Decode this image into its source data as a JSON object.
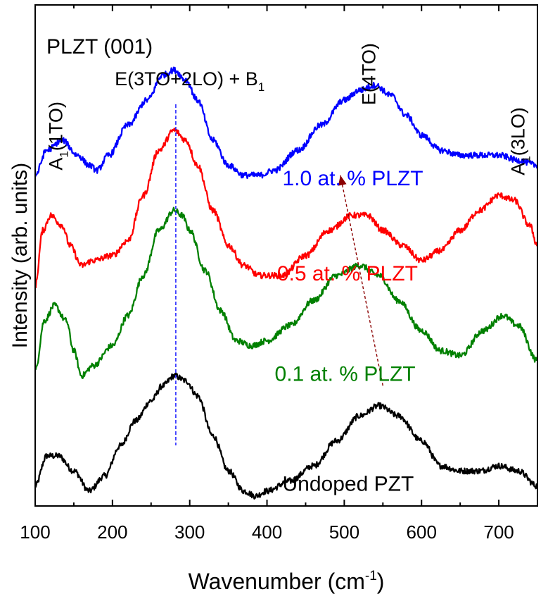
{
  "chart_data": {
    "type": "line",
    "title": "PLZT (001)",
    "xlabel_main": "Wavenumber (cm",
    "xlabel_sup": "-1",
    "xlabel_close": ")",
    "ylabel": "Intensity (arb. units)",
    "xlim": [
      100,
      750
    ],
    "ylim": [
      0,
      1
    ],
    "y_ticks_shown": false,
    "x_ticks": [
      100,
      200,
      300,
      400,
      500,
      600,
      700
    ],
    "x_tick_labels": [
      "100",
      "200",
      "300",
      "400",
      "500",
      "600",
      "700"
    ],
    "reference_line": {
      "x": 282,
      "color": "#1a1aff",
      "style": "dashed"
    },
    "trend_arrow": {
      "from_x": 550,
      "from_y": 0.24,
      "to_x": 495,
      "to_y": 0.66,
      "color": "#8b0000"
    },
    "peak_annotations": [
      {
        "main": "A",
        "sub": "1",
        "rest": "(1TO)",
        "x": 135,
        "y": 0.67,
        "rotated": true
      },
      {
        "main": "E(3TO+2LO) + B",
        "sub": "1",
        "rest": "",
        "x": 300,
        "y": 0.84,
        "rotated": false
      },
      {
        "main": "E(4TO)",
        "sub": "",
        "rest": "",
        "x": 540,
        "y": 0.8,
        "rotated": true
      },
      {
        "main": "A",
        "sub": "1",
        "rest": "(3LO)",
        "x": 733,
        "y": 0.66,
        "rotated": true
      }
    ],
    "series": [
      {
        "name": "Undoped PZT",
        "label": "Undoped PZT",
        "color": "#000000",
        "label_x": 420,
        "label_y": 0.03,
        "x": [
          100,
          115,
          130,
          150,
          170,
          190,
          210,
          230,
          250,
          265,
          280,
          295,
          310,
          330,
          350,
          370,
          385,
          400,
          430,
          460,
          490,
          520,
          545,
          570,
          600,
          625,
          650,
          675,
          700,
          725,
          750
        ],
        "y": [
          0.04,
          0.1,
          0.1,
          0.07,
          0.03,
          0.06,
          0.12,
          0.17,
          0.21,
          0.24,
          0.26,
          0.25,
          0.22,
          0.14,
          0.07,
          0.03,
          0.02,
          0.03,
          0.05,
          0.08,
          0.13,
          0.18,
          0.2,
          0.18,
          0.13,
          0.08,
          0.07,
          0.07,
          0.08,
          0.07,
          0.04
        ]
      },
      {
        "name": "0.1 at. % PLZT",
        "label": "0.1 at. % PLZT",
        "color": "#008000",
        "label_x": 410,
        "label_y": 0.25,
        "x": [
          100,
          112,
          125,
          140,
          150,
          160,
          175,
          200,
          220,
          240,
          260,
          280,
          290,
          300,
          320,
          340,
          360,
          380,
          400,
          430,
          460,
          490,
          520,
          545,
          570,
          600,
          625,
          650,
          680,
          705,
          725,
          750
        ],
        "y": [
          0.27,
          0.37,
          0.4,
          0.37,
          0.31,
          0.26,
          0.28,
          0.32,
          0.38,
          0.46,
          0.55,
          0.59,
          0.58,
          0.55,
          0.47,
          0.39,
          0.33,
          0.32,
          0.33,
          0.36,
          0.41,
          0.46,
          0.48,
          0.46,
          0.41,
          0.35,
          0.31,
          0.3,
          0.35,
          0.38,
          0.36,
          0.29
        ]
      },
      {
        "name": "0.5 at. % PLZT",
        "label": "0.5 at. % PLZT",
        "color": "#ff0000",
        "label_x": 413,
        "label_y": 0.45,
        "x": [
          100,
          110,
          120,
          135,
          145,
          160,
          175,
          200,
          220,
          240,
          260,
          280,
          295,
          310,
          330,
          350,
          370,
          390,
          420,
          450,
          480,
          510,
          530,
          550,
          575,
          600,
          625,
          650,
          675,
          700,
          720,
          740,
          750
        ],
        "y": [
          0.44,
          0.55,
          0.58,
          0.56,
          0.52,
          0.48,
          0.49,
          0.5,
          0.53,
          0.62,
          0.71,
          0.75,
          0.73,
          0.68,
          0.59,
          0.52,
          0.48,
          0.46,
          0.46,
          0.5,
          0.55,
          0.58,
          0.58,
          0.55,
          0.52,
          0.49,
          0.51,
          0.55,
          0.59,
          0.62,
          0.61,
          0.56,
          0.52
        ]
      },
      {
        "name": "1.0 at. % PLZT",
        "label": "1.0 at. % PLZT",
        "color": "#0000ff",
        "label_x": 420,
        "label_y": 0.64,
        "x": [
          100,
          115,
          135,
          155,
          170,
          180,
          195,
          220,
          245,
          265,
          280,
          295,
          310,
          330,
          350,
          370,
          390,
          410,
          440,
          470,
          500,
          520,
          540,
          560,
          580,
          600,
          625,
          650,
          675,
          700,
          725,
          750
        ],
        "y": [
          0.66,
          0.71,
          0.73,
          0.7,
          0.68,
          0.67,
          0.7,
          0.76,
          0.81,
          0.86,
          0.87,
          0.85,
          0.81,
          0.73,
          0.68,
          0.66,
          0.66,
          0.67,
          0.71,
          0.76,
          0.81,
          0.83,
          0.84,
          0.82,
          0.78,
          0.74,
          0.71,
          0.7,
          0.7,
          0.7,
          0.69,
          0.68
        ]
      }
    ]
  }
}
